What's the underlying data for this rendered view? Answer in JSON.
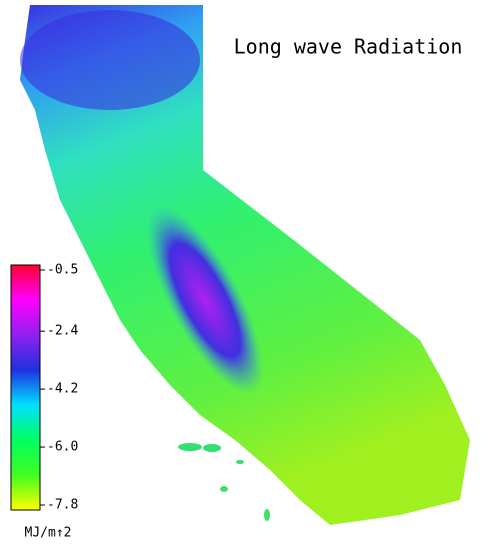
{
  "title": "Long wave Radiation",
  "colorbar": {
    "lim": [
      -7.8,
      -0.5
    ],
    "ticks": [
      -0.5,
      -2.4,
      -4.2,
      {
        "value": -6,
        "label": "-6.0"
      },
      -7.8
    ],
    "unit": "MJ/m↑2",
    "colors": [
      "#ff0030",
      "#ff00ff",
      "#9020f0",
      "#2030e0",
      "#00e0ff",
      "#00ff60",
      "#40ff20",
      "#ffff00"
    ]
  }
}
